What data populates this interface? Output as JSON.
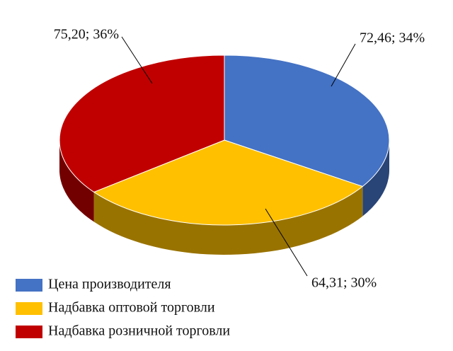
{
  "chart_data": {
    "type": "pie",
    "categories": [
      "Цена производителя",
      "Надбавка оптовой торговли",
      "Надбавка розничной торговли"
    ],
    "values": [
      72.46,
      64.31,
      75.2
    ],
    "value_labels": [
      "72,46; 34%",
      "64,31; 30%",
      "75,20; 36%"
    ],
    "colors": [
      "#4472c4",
      "#ffc000",
      "#c00000"
    ]
  }
}
